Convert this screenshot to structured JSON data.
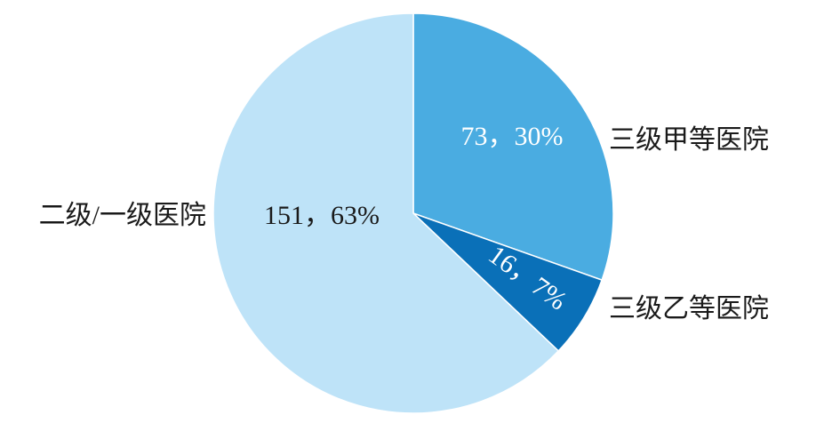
{
  "chart_data": {
    "type": "pie",
    "categories": [
      "三级甲等医院",
      "三级乙等医院",
      "二级/一级医院"
    ],
    "values": [
      73,
      16,
      151
    ],
    "value_labels": [
      "73，30%",
      "16，7%",
      "151，63%"
    ],
    "colors": [
      "#4aace1",
      "#0a70b8",
      "#bee3f8"
    ]
  }
}
